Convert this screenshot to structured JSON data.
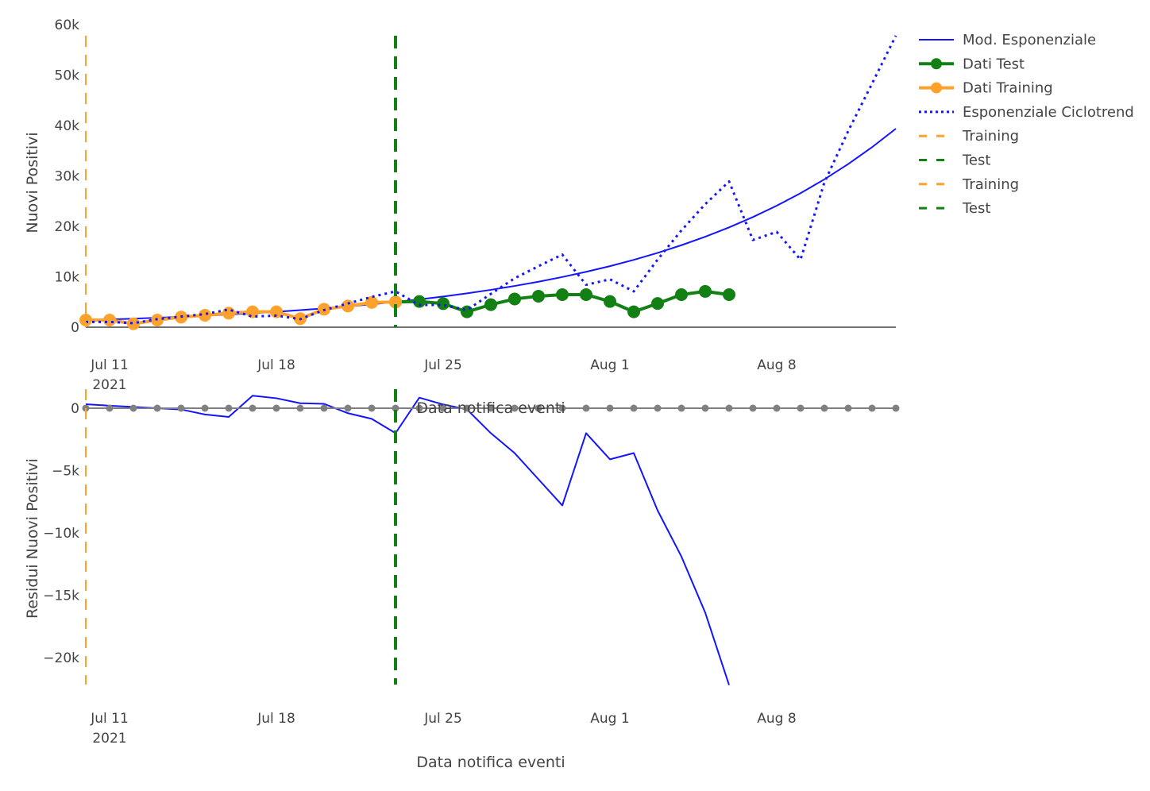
{
  "colors": {
    "model": "#1414ff",
    "test": "#138013",
    "training": "#ffa22b",
    "residual": "#1414ff",
    "zero": "#808080",
    "axis": "#444444"
  },
  "chart_data": [
    {
      "type": "line",
      "ylabel": "Nuovi Positivi",
      "xlabel": "Data notifica eventi",
      "xlim": [
        "2021-07-10",
        "2021-08-13"
      ],
      "ylim": [
        0,
        57800
      ],
      "yticks": [
        {
          "v": 0,
          "label": "0"
        },
        {
          "v": 10000,
          "label": "10k"
        },
        {
          "v": 20000,
          "label": "20k"
        },
        {
          "v": 30000,
          "label": "30k"
        },
        {
          "v": 40000,
          "label": "40k"
        },
        {
          "v": 50000,
          "label": "50k"
        },
        {
          "v": 60000,
          "label": "60k"
        }
      ],
      "xticks": [
        {
          "date": "2021-07-11",
          "label": "Jul 11",
          "sub": "2021"
        },
        {
          "date": "2021-07-18",
          "label": "Jul 18",
          "sub": ""
        },
        {
          "date": "2021-07-25",
          "label": "Jul 25",
          "sub": ""
        },
        {
          "date": "2021-08-01",
          "label": "Aug 1",
          "sub": ""
        },
        {
          "date": "2021-08-08",
          "label": "Aug 8",
          "sub": ""
        }
      ],
      "legend_position": "right",
      "series": [
        {
          "name": "Mod. Esponenziale",
          "style": "solid",
          "color_key": "model",
          "start": "2021-07-10",
          "values": [
            1400,
            1540,
            1700,
            1880,
            2070,
            2280,
            2520,
            2780,
            3060,
            3380,
            3730,
            4110,
            4540,
            5000,
            5520,
            6090,
            6720,
            7410,
            8180,
            9020,
            9950,
            10980,
            12110,
            13360,
            14740,
            16260,
            17940,
            19790,
            21840,
            24090,
            26580,
            29320,
            32350,
            35690,
            39370
          ]
        },
        {
          "name": "Dati Test",
          "style": "markers+lines",
          "color_key": "test",
          "start": "2021-07-23",
          "values": [
            5000,
            5100,
            4680,
            3050,
            4470,
            5600,
            6150,
            6460,
            6460,
            5100,
            3050,
            4700,
            6460,
            7100,
            6460
          ]
        },
        {
          "name": "Dati Training",
          "style": "markers+lines",
          "color_key": "training",
          "start": "2021-07-10",
          "values": [
            1420,
            1420,
            690,
            1420,
            2000,
            2360,
            2790,
            3050,
            3050,
            1690,
            3570,
            4200,
            4900,
            5000
          ]
        },
        {
          "name": "Esponenziale Ciclotrend",
          "style": "dot",
          "color_key": "model",
          "start": "2021-07-10",
          "values": [
            1050,
            1050,
            800,
            1600,
            2100,
            2600,
            3500,
            2100,
            2300,
            1600,
            3400,
            4700,
            6000,
            7100,
            4400,
            4400,
            3400,
            6600,
            9700,
            12100,
            14400,
            8400,
            9500,
            7100,
            13400,
            19200,
            24400,
            28900,
            17300,
            18900,
            13400,
            28700,
            38900,
            48300,
            57800
          ]
        }
      ],
      "vlines": [
        {
          "name": "Training",
          "date": "2021-07-10",
          "color_key": "training"
        },
        {
          "name": "Test",
          "date": "2021-07-23",
          "color_key": "test"
        }
      ]
    },
    {
      "type": "line",
      "ylabel": "Residui Nuovi Positivi",
      "xlabel": "Data notifica eventi",
      "xlim": [
        "2021-07-10",
        "2021-08-13"
      ],
      "ylim": [
        -22200,
        1500
      ],
      "yticks": [
        {
          "v": 0,
          "label": "0"
        },
        {
          "v": -5000,
          "label": "−5k"
        },
        {
          "v": -10000,
          "label": "−10k"
        },
        {
          "v": -15000,
          "label": "−15k"
        },
        {
          "v": -20000,
          "label": "−20k"
        }
      ],
      "xticks": [
        {
          "date": "2021-07-11",
          "label": "Jul 11",
          "sub": "2021"
        },
        {
          "date": "2021-07-18",
          "label": "Jul 18",
          "sub": ""
        },
        {
          "date": "2021-07-25",
          "label": "Jul 25",
          "sub": ""
        },
        {
          "date": "2021-08-01",
          "label": "Aug 1",
          "sub": ""
        },
        {
          "date": "2021-08-08",
          "label": "Aug 8",
          "sub": ""
        }
      ],
      "series": [
        {
          "style": "solid",
          "color_key": "residual",
          "start": "2021-07-10",
          "values": [
            320,
            200,
            100,
            0,
            -100,
            -500,
            -700,
            1000,
            800,
            400,
            350,
            -400,
            -850,
            -2000,
            850,
            300,
            -100,
            -2000,
            -3600,
            -5700,
            -7800,
            -2000,
            -4100,
            -3600,
            -8200,
            -11900,
            -16400,
            -22200
          ]
        },
        {
          "style": "markers+lines",
          "color_key": "zero",
          "start": "2021-07-10",
          "values": [
            0,
            0,
            0,
            0,
            0,
            0,
            0,
            0,
            0,
            0,
            0,
            0,
            0,
            0,
            0,
            0,
            0,
            0,
            0,
            0,
            0,
            0,
            0,
            0,
            0,
            0,
            0,
            0,
            0,
            0,
            0,
            0,
            0,
            0,
            0
          ]
        }
      ],
      "vlines": [
        {
          "name": "Training",
          "date": "2021-07-10",
          "color_key": "training"
        },
        {
          "name": "Test",
          "date": "2021-07-23",
          "color_key": "test"
        }
      ]
    }
  ],
  "legend": [
    {
      "label": "Mod. Esponenziale",
      "style": "solid",
      "color_key": "model"
    },
    {
      "label": "Dati Test",
      "style": "markers+lines",
      "color_key": "test"
    },
    {
      "label": "Dati Training",
      "style": "markers+lines",
      "color_key": "training"
    },
    {
      "label": "Esponenziale Ciclotrend",
      "style": "dot",
      "color_key": "model"
    },
    {
      "label": "Training",
      "style": "dash",
      "color_key": "training"
    },
    {
      "label": "Test",
      "style": "dash",
      "color_key": "test"
    },
    {
      "label": "Training",
      "style": "dash",
      "color_key": "training"
    },
    {
      "label": "Test",
      "style": "dash",
      "color_key": "test"
    }
  ]
}
